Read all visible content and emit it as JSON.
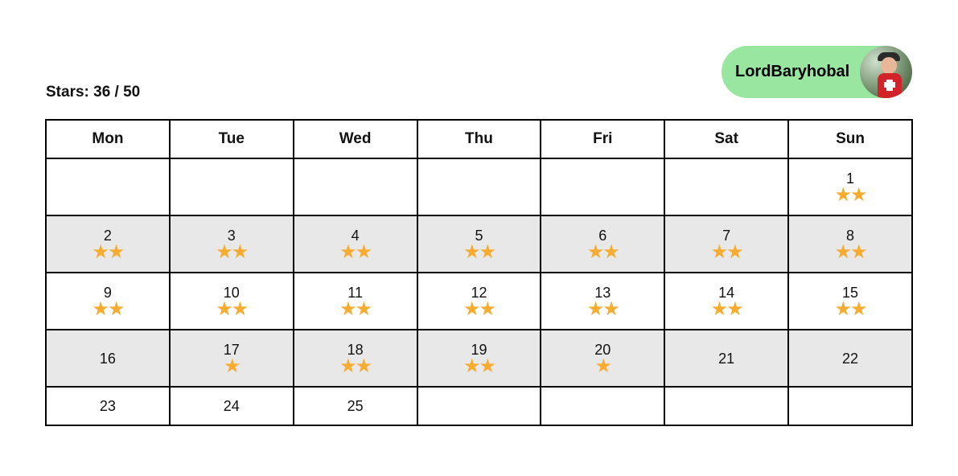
{
  "summary": {
    "stars_label": "Stars: 36 / 50"
  },
  "user": {
    "name": "LordBaryhobal",
    "avatar_icon": "user-avatar-photo"
  },
  "colors": {
    "badge_bg": "#98e6a0",
    "star": "#f7ab2f",
    "shaded_row": "#e8e8e8"
  },
  "calendar": {
    "weekdays": [
      "Mon",
      "Tue",
      "Wed",
      "Thu",
      "Fri",
      "Sat",
      "Sun"
    ],
    "weeks": [
      [
        {
          "day": ""
        },
        {
          "day": ""
        },
        {
          "day": ""
        },
        {
          "day": ""
        },
        {
          "day": ""
        },
        {
          "day": ""
        },
        {
          "day": "1",
          "stars": 2
        }
      ],
      [
        {
          "day": "2",
          "stars": 2
        },
        {
          "day": "3",
          "stars": 2
        },
        {
          "day": "4",
          "stars": 2
        },
        {
          "day": "5",
          "stars": 2
        },
        {
          "day": "6",
          "stars": 2
        },
        {
          "day": "7",
          "stars": 2
        },
        {
          "day": "8",
          "stars": 2
        }
      ],
      [
        {
          "day": "9",
          "stars": 2
        },
        {
          "day": "10",
          "stars": 2
        },
        {
          "day": "11",
          "stars": 2
        },
        {
          "day": "12",
          "stars": 2
        },
        {
          "day": "13",
          "stars": 2
        },
        {
          "day": "14",
          "stars": 2
        },
        {
          "day": "15",
          "stars": 2
        }
      ],
      [
        {
          "day": "16",
          "stars": 0
        },
        {
          "day": "17",
          "stars": 1
        },
        {
          "day": "18",
          "stars": 2
        },
        {
          "day": "19",
          "stars": 2
        },
        {
          "day": "20",
          "stars": 1
        },
        {
          "day": "21",
          "stars": 0
        },
        {
          "day": "22",
          "stars": 0
        }
      ],
      [
        {
          "day": "23",
          "stars": 0
        },
        {
          "day": "24",
          "stars": 0
        },
        {
          "day": "25",
          "stars": 0
        },
        {
          "day": ""
        },
        {
          "day": ""
        },
        {
          "day": ""
        },
        {
          "day": ""
        }
      ]
    ]
  }
}
